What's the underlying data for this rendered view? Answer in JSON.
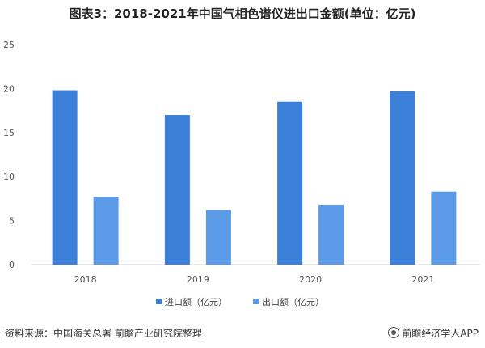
{
  "title": "图表3：2018-2021年中国气相色谱仪进出口金额(单位：亿元)",
  "chart_data": {
    "type": "bar",
    "categories": [
      "2018",
      "2019",
      "2020",
      "2021"
    ],
    "series": [
      {
        "name": "进口额（亿元）",
        "values": [
          19.8,
          17.0,
          18.5,
          19.7
        ],
        "color": "#3b7fd9"
      },
      {
        "name": "出口额（亿元）",
        "values": [
          7.7,
          6.2,
          6.8,
          8.3
        ],
        "color": "#5b9ae6"
      }
    ],
    "ylim": [
      0,
      25
    ],
    "yticks": [
      "0",
      "5",
      "10",
      "15",
      "20",
      "25"
    ],
    "legend_position": "bottom",
    "grid": false
  },
  "footer": {
    "source": "资料来源：中国海关总署 前瞻产业研究院整理",
    "brand": "前瞻经济学人APP"
  }
}
